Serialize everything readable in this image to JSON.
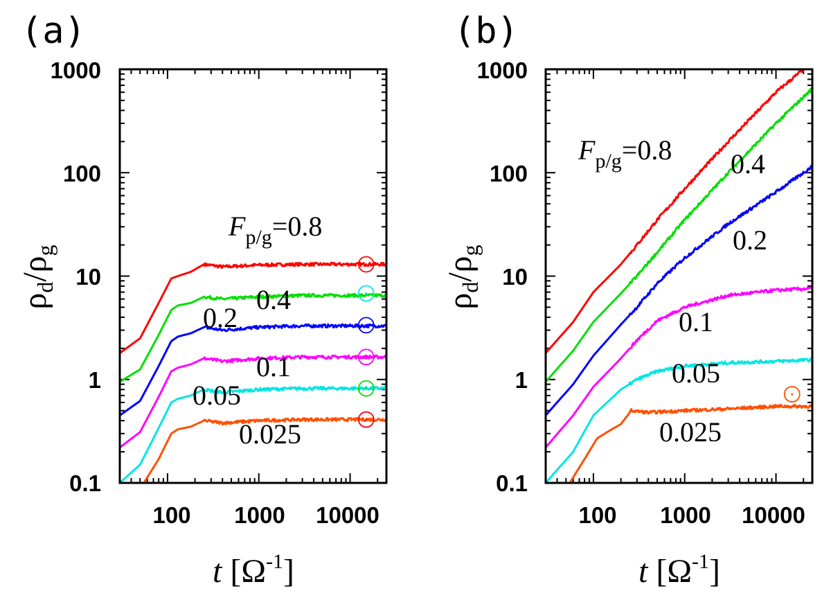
{
  "chart_data": [
    {
      "panel": "(a)",
      "type": "line",
      "xscale": "log",
      "yscale": "log",
      "xlim": [
        30,
        25000
      ],
      "ylim": [
        0.1,
        1000
      ],
      "xticks": [
        "100",
        "1000",
        "10000"
      ],
      "yticks": [
        "0.1",
        "1",
        "10",
        "100",
        "1000"
      ],
      "xlabel": "t [Ω-1]",
      "ylabel": "ρd/ρg",
      "series": [
        {
          "name": "F_p/g=0.8",
          "color": "#ff0000",
          "label_color": "#ff0000",
          "x": [
            30,
            50,
            80,
            110,
            130,
            180,
            250,
            400,
            1000,
            3000,
            10000,
            25000
          ],
          "y": [
            1.8,
            2.5,
            5.5,
            9.5,
            10.0,
            11.0,
            13.0,
            12.3,
            12.8,
            13.0,
            13.0,
            13.0
          ]
        },
        {
          "name": "0.4",
          "color": "#00e000",
          "x": [
            30,
            50,
            80,
            110,
            130,
            180,
            250,
            400,
            1000,
            3000,
            10000,
            25000
          ],
          "y": [
            0.95,
            1.25,
            2.7,
            4.7,
            5.2,
            5.5,
            6.3,
            6.0,
            6.3,
            6.5,
            6.5,
            6.5
          ]
        },
        {
          "name": "0.2",
          "color": "#0000ff",
          "x": [
            30,
            50,
            80,
            110,
            130,
            180,
            250,
            400,
            1000,
            3000,
            10000,
            25000
          ],
          "y": [
            0.45,
            0.62,
            1.35,
            2.35,
            2.6,
            2.8,
            3.2,
            3.0,
            3.2,
            3.3,
            3.3,
            3.3
          ]
        },
        {
          "name": "0.1",
          "color": "#ff00ff",
          "x": [
            30,
            50,
            80,
            110,
            130,
            180,
            250,
            400,
            1000,
            3000,
            10000,
            25000
          ],
          "y": [
            0.22,
            0.31,
            0.68,
            1.2,
            1.3,
            1.4,
            1.6,
            1.5,
            1.6,
            1.65,
            1.65,
            1.65
          ]
        },
        {
          "name": "0.05",
          "color": "#00e5e5",
          "x": [
            30,
            50,
            80,
            110,
            130,
            180,
            250,
            400,
            1000,
            3000,
            10000,
            25000
          ],
          "y": [
            0.1,
            0.15,
            0.34,
            0.6,
            0.65,
            0.7,
            0.8,
            0.75,
            0.8,
            0.82,
            0.82,
            0.82
          ]
        },
        {
          "name": "0.025",
          "color": "#ff5000",
          "x": [
            55,
            80,
            110,
            130,
            180,
            250,
            400,
            1000,
            3000,
            10000,
            25000
          ],
          "y": [
            0.1,
            0.17,
            0.3,
            0.33,
            0.35,
            0.4,
            0.38,
            0.4,
            0.41,
            0.41,
            0.41
          ]
        }
      ],
      "markers": [
        {
          "x": 15000,
          "y": 13.0,
          "color": "#ff0000"
        },
        {
          "x": 15000,
          "y": 6.8,
          "color": "#00e5e5"
        },
        {
          "x": 15000,
          "y": 3.35,
          "color": "#0000ff"
        },
        {
          "x": 15000,
          "y": 1.65,
          "color": "#ff00ff"
        },
        {
          "x": 15000,
          "y": 0.82,
          "color": "#00e000"
        },
        {
          "x": 15000,
          "y": 0.41,
          "color": "#ff0000"
        }
      ]
    },
    {
      "panel": "(b)",
      "type": "line",
      "xscale": "log",
      "yscale": "log",
      "xlim": [
        30,
        25000
      ],
      "ylim": [
        0.1,
        1000
      ],
      "xticks": [
        "100",
        "1000",
        "10000"
      ],
      "yticks": [
        "0.1",
        "1",
        "10",
        "100",
        "1000"
      ],
      "xlabel": "t [Ω-1]",
      "ylabel": "ρd/ρg",
      "series": [
        {
          "name": "F_p/g=0.8",
          "color": "#ff0000",
          "x": [
            30,
            60,
            100,
            200,
            300,
            500,
            1000,
            3000,
            10000,
            20000
          ],
          "y": [
            1.8,
            3.6,
            7.0,
            13.0,
            20.0,
            35.0,
            70.0,
            200.0,
            600.0,
            1000.0
          ]
        },
        {
          "name": "0.4",
          "color": "#00e000",
          "x": [
            30,
            60,
            100,
            200,
            300,
            500,
            1000,
            3000,
            10000,
            25000
          ],
          "y": [
            0.95,
            1.9,
            3.6,
            6.8,
            10.0,
            17.0,
            35.0,
            100.0,
            300.0,
            650.0
          ]
        },
        {
          "name": "0.2",
          "color": "#0000ff",
          "x": [
            30,
            60,
            100,
            200,
            300,
            500,
            1000,
            3000,
            10000,
            25000
          ],
          "y": [
            0.45,
            0.9,
            1.7,
            3.4,
            5.0,
            8.5,
            15.0,
            32.0,
            65.0,
            115.0
          ]
        },
        {
          "name": "0.1",
          "color": "#ff00ff",
          "x": [
            30,
            60,
            100,
            200,
            300,
            500,
            1000,
            3000,
            10000,
            25000
          ],
          "y": [
            0.22,
            0.45,
            0.85,
            1.6,
            2.4,
            3.7,
            5.0,
            6.5,
            7.3,
            7.6
          ]
        },
        {
          "name": "0.05",
          "color": "#00e5e5",
          "x": [
            30,
            60,
            100,
            200,
            300,
            500,
            1000,
            3000,
            10000,
            25000
          ],
          "y": [
            0.1,
            0.2,
            0.45,
            0.8,
            1.0,
            1.2,
            1.35,
            1.45,
            1.5,
            1.55
          ]
        },
        {
          "name": "0.025",
          "color": "#ff5000",
          "x": [
            55,
            80,
            110,
            150,
            200,
            260,
            400,
            1000,
            3000,
            10000,
            25000
          ],
          "y": [
            0.1,
            0.17,
            0.27,
            0.32,
            0.37,
            0.5,
            0.48,
            0.5,
            0.52,
            0.55,
            0.55
          ]
        }
      ],
      "markers": [
        {
          "x": 15000,
          "y": 0.72,
          "color": "#ff5000"
        }
      ]
    }
  ],
  "panels": [
    {
      "label": "(a)",
      "xticks": [
        "100",
        "1000",
        "10000"
      ],
      "yticks": [
        "0.1",
        "1",
        "10",
        "100",
        "1000"
      ],
      "curve_labels": [
        "0.4",
        "0.2",
        "0.1",
        "0.05",
        "0.025"
      ],
      "main_label": {
        "var": "F",
        "sub": "p/g",
        "value": "=0.8"
      }
    },
    {
      "label": "(b)",
      "xticks": [
        "100",
        "1000",
        "10000"
      ],
      "yticks": [
        "0.1",
        "1",
        "10",
        "100",
        "1000"
      ],
      "curve_labels": [
        "0.4",
        "0.2",
        "0.1",
        "0.05",
        "0.025"
      ],
      "main_label": {
        "var": "F",
        "sub": "p/g",
        "value": "=0.8"
      }
    }
  ],
  "axis_text": {
    "xlabel_var": "t",
    "xlabel_bracket_open": "[",
    "xlabel_unit": "Ω",
    "xlabel_exp": "-1",
    "xlabel_bracket_close": "]",
    "ylabel_num": "ρ",
    "ylabel_num_sub": "d",
    "ylabel_slash": "/",
    "ylabel_den": "ρ",
    "ylabel_den_sub": "g"
  }
}
